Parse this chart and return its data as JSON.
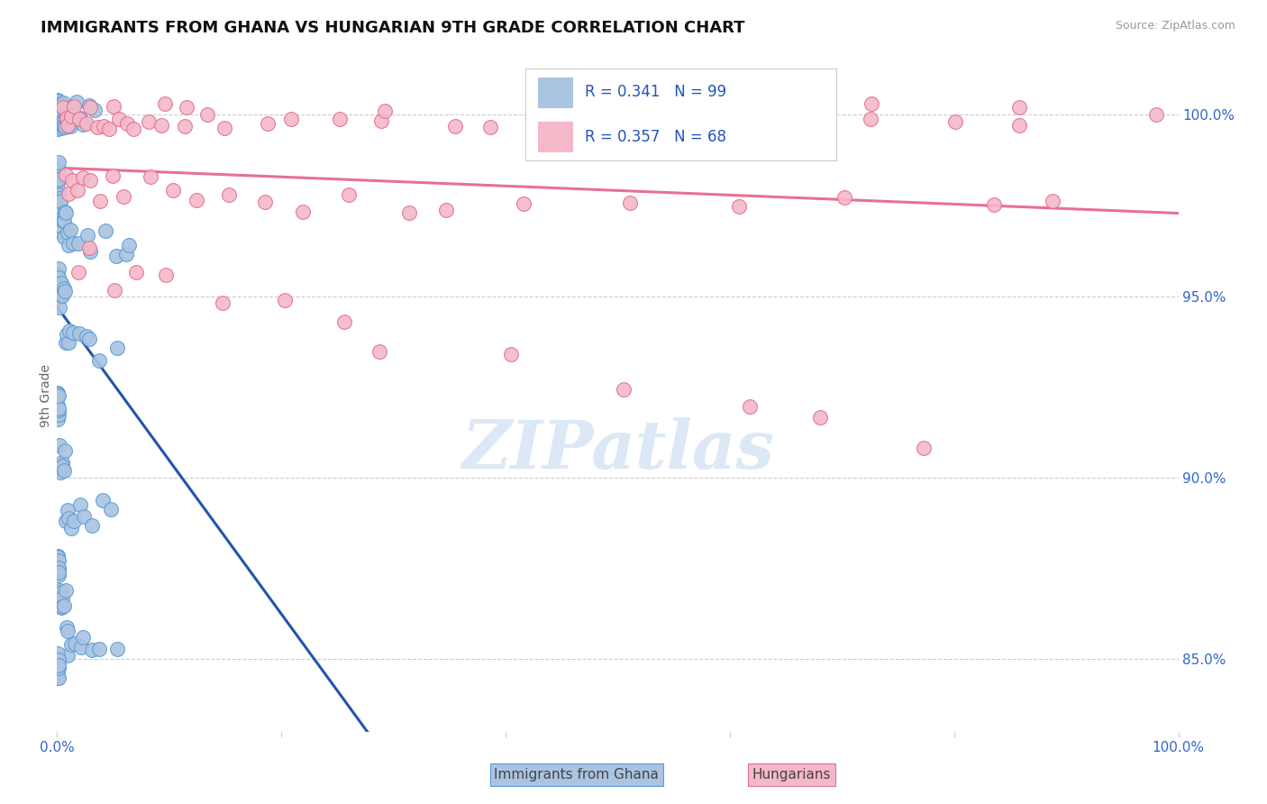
{
  "title": "IMMIGRANTS FROM GHANA VS HUNGARIAN 9TH GRADE CORRELATION CHART",
  "source": "Source: ZipAtlas.com",
  "ylabel": "9th Grade",
  "xlim": [
    0.0,
    100.0
  ],
  "ylim": [
    83.0,
    101.5
  ],
  "y_tick_vals_right": [
    85.0,
    90.0,
    95.0,
    100.0
  ],
  "blue_color": "#aac4e2",
  "blue_edge": "#5b9bd5",
  "pink_color": "#f4b8c8",
  "pink_edge": "#e07090",
  "trend_blue": "#2255aa",
  "trend_pink": "#e87090",
  "watermark_color": "#dce8f5",
  "bg_color": "#ffffff",
  "blue_x": [
    0.05,
    0.05,
    0.05,
    0.07,
    0.07,
    0.07,
    0.08,
    0.08,
    0.09,
    0.09,
    0.1,
    0.1,
    0.1,
    0.11,
    0.11,
    0.12,
    0.12,
    0.13,
    0.13,
    0.15,
    0.15,
    0.17,
    0.18,
    0.2,
    0.22,
    0.25,
    0.28,
    0.3,
    0.32,
    0.35,
    0.38,
    0.4,
    0.43,
    0.45,
    0.48,
    0.5,
    0.52,
    0.55,
    0.58,
    0.6,
    0.65,
    0.7,
    0.75,
    0.8,
    0.85,
    0.9,
    1.0,
    1.1,
    1.2,
    1.3,
    1.5,
    1.7,
    2.0,
    2.5,
    3.0,
    3.5,
    0.05,
    0.05,
    0.06,
    0.06,
    0.07,
    0.07,
    0.08,
    0.09,
    0.1,
    0.1,
    0.12,
    0.13,
    0.14,
    0.15,
    0.16,
    0.18,
    0.2,
    0.22,
    0.25,
    0.28,
    0.3,
    0.35,
    0.4,
    0.45,
    0.5,
    0.55,
    0.6,
    0.7,
    0.8,
    0.9,
    1.0,
    1.2,
    1.5,
    2.0,
    2.5,
    3.0,
    4.0,
    5.0,
    6.0,
    7.0,
    0.05,
    0.06,
    0.07,
    0.08,
    0.09,
    0.1,
    0.11,
    0.12,
    0.14,
    0.16,
    0.18,
    0.2,
    0.25,
    0.3,
    0.35,
    0.4,
    0.45,
    0.5,
    0.6,
    0.7,
    0.8,
    0.9,
    1.0,
    1.2,
    1.5,
    2.0,
    2.5,
    3.0,
    4.0,
    5.0,
    0.05,
    0.06,
    0.07,
    0.08,
    0.09,
    0.1,
    0.11,
    0.12,
    0.14,
    0.16,
    0.18,
    0.2,
    0.25,
    0.3,
    0.35,
    0.4,
    0.45,
    0.5,
    0.6,
    0.7,
    0.8,
    0.9,
    1.0,
    1.2,
    1.5,
    2.0,
    2.5,
    3.0,
    4.0,
    5.0,
    0.05,
    0.06,
    0.07,
    0.08,
    0.09,
    0.1,
    0.11,
    0.12,
    0.14,
    0.16,
    0.18,
    0.2,
    0.25,
    0.3,
    0.35,
    0.4,
    0.45,
    0.5,
    0.6,
    0.7,
    0.8,
    0.9,
    1.0,
    1.2,
    1.5,
    2.0,
    2.5,
    3.0,
    4.0,
    5.0,
    0.05,
    0.06,
    0.07,
    0.08,
    0.09,
    0.1,
    0.11,
    0.12,
    0.14,
    0.16
  ],
  "blue_y": [
    100.0,
    100.0,
    100.0,
    100.0,
    100.0,
    100.0,
    100.0,
    100.0,
    100.0,
    100.0,
    100.0,
    100.0,
    100.0,
    100.0,
    100.0,
    100.0,
    100.0,
    100.0,
    100.0,
    100.0,
    100.0,
    100.0,
    100.0,
    100.0,
    100.0,
    100.0,
    100.0,
    100.0,
    100.0,
    100.0,
    100.0,
    100.0,
    100.0,
    100.0,
    100.0,
    100.0,
    100.0,
    100.0,
    100.0,
    100.0,
    100.0,
    100.0,
    100.0,
    100.0,
    100.0,
    100.0,
    100.0,
    100.0,
    100.0,
    100.0,
    100.0,
    100.0,
    100.0,
    100.0,
    100.0,
    100.0,
    98.5,
    98.5,
    98.5,
    98.5,
    98.5,
    98.5,
    98.5,
    98.5,
    98.5,
    98.5,
    98.0,
    98.0,
    98.0,
    98.0,
    98.0,
    98.0,
    98.0,
    97.5,
    97.5,
    97.5,
    97.5,
    97.0,
    97.0,
    97.0,
    97.0,
    97.0,
    97.0,
    97.0,
    97.0,
    97.0,
    96.5,
    96.5,
    96.5,
    96.5,
    96.5,
    96.5,
    96.5,
    96.5,
    96.5,
    96.5,
    95.5,
    95.5,
    95.5,
    95.5,
    95.5,
    95.5,
    95.5,
    95.5,
    95.5,
    95.5,
    95.0,
    95.0,
    95.0,
    95.0,
    95.0,
    95.0,
    95.0,
    95.0,
    95.0,
    95.0,
    94.0,
    94.0,
    94.0,
    94.0,
    94.0,
    94.0,
    93.5,
    93.5,
    93.5,
    93.5,
    92.0,
    92.0,
    92.0,
    92.0,
    92.0,
    92.0,
    92.0,
    92.0,
    92.0,
    92.0,
    90.5,
    90.5,
    90.5,
    90.5,
    90.5,
    90.5,
    90.5,
    90.5,
    90.5,
    90.5,
    89.0,
    89.0,
    89.0,
    89.0,
    89.0,
    89.0,
    89.0,
    89.0,
    89.0,
    89.0,
    87.5,
    87.5,
    87.5,
    87.5,
    87.5,
    87.5,
    87.5,
    87.5,
    87.5,
    87.5,
    86.5,
    86.5,
    86.5,
    86.5,
    86.5,
    86.5,
    86.5,
    86.5,
    86.5,
    86.5,
    85.5,
    85.5,
    85.5,
    85.5,
    85.5,
    85.5,
    85.5,
    85.5,
    85.5,
    85.5,
    84.8,
    84.8,
    84.8,
    84.8,
    84.8,
    84.8,
    84.8,
    84.8,
    84.8,
    84.8
  ],
  "pink_x": [
    0.5,
    0.8,
    1.0,
    1.2,
    1.5,
    2.0,
    2.5,
    3.0,
    3.5,
    4.0,
    4.5,
    5.0,
    5.5,
    6.0,
    7.0,
    8.0,
    9.0,
    10.0,
    11.0,
    12.0,
    14.0,
    15.0,
    18.0,
    20.0,
    25.0,
    28.0,
    30.0,
    35.0,
    40.0,
    45.0,
    50.0,
    55.0,
    60.0,
    65.0,
    70.0,
    75.0,
    80.0,
    85.0,
    90.0,
    95.0,
    0.8,
    1.0,
    1.3,
    1.8,
    2.2,
    3.0,
    4.0,
    5.0,
    6.0,
    8.0,
    10.0,
    12.0,
    15.0,
    18.0,
    22.0,
    25.0,
    30.0,
    35.0,
    40.0,
    50.0,
    60.0,
    70.0,
    80.0,
    90.0,
    2.0,
    3.0,
    5.0,
    7.0,
    10.0,
    15.0,
    20.0,
    25.0,
    30.0,
    40.0,
    50.0,
    60.0,
    70.0,
    80.0
  ],
  "pink_y": [
    100.0,
    100.0,
    100.0,
    100.0,
    100.0,
    100.0,
    100.0,
    100.0,
    100.0,
    100.0,
    100.0,
    100.0,
    100.0,
    100.0,
    100.0,
    100.0,
    100.0,
    100.0,
    100.0,
    100.0,
    100.0,
    100.0,
    100.0,
    100.0,
    100.0,
    100.0,
    100.0,
    100.0,
    100.0,
    100.0,
    100.0,
    100.0,
    100.0,
    100.0,
    100.0,
    100.0,
    100.0,
    100.0,
    100.0,
    100.0,
    98.0,
    98.0,
    98.0,
    98.0,
    98.0,
    98.0,
    98.0,
    98.0,
    98.0,
    98.0,
    98.0,
    98.0,
    97.5,
    97.5,
    97.5,
    97.5,
    97.5,
    97.5,
    97.5,
    97.5,
    97.5,
    97.5,
    97.5,
    97.5,
    96.0,
    96.0,
    95.5,
    95.5,
    95.5,
    95.0,
    94.5,
    94.0,
    93.5,
    93.0,
    92.5,
    92.0,
    91.5,
    91.0
  ]
}
